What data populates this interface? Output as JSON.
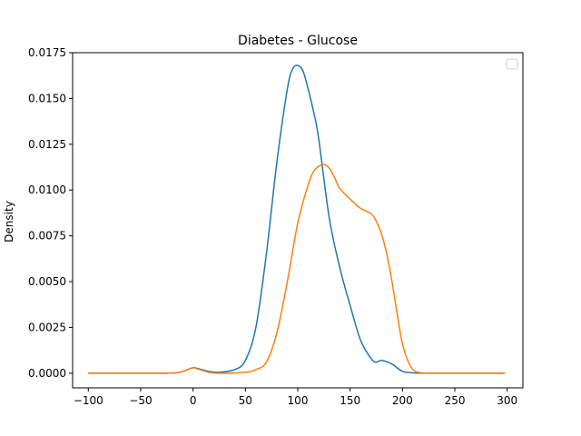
{
  "chart_data": {
    "type": "line",
    "title": "Diabetes - Glucose",
    "xlabel": "",
    "ylabel": "Density",
    "xlim": [
      -115,
      315
    ],
    "ylim": [
      -0.0008,
      0.0175
    ],
    "xticks": [
      -100,
      -50,
      0,
      50,
      100,
      150,
      200,
      250,
      300
    ],
    "xtick_labels": [
      "−100",
      "−50",
      "0",
      "50",
      "100",
      "150",
      "200",
      "250",
      "300"
    ],
    "yticks": [
      0.0,
      0.0025,
      0.005,
      0.0075,
      0.01,
      0.0125,
      0.015,
      0.0175
    ],
    "ytick_labels": [
      "0.0000",
      "0.0025",
      "0.0050",
      "0.0075",
      "0.0100",
      "0.0125",
      "0.0150",
      "0.0175"
    ],
    "grid": false,
    "legend": "top-right (empty)",
    "series": [
      {
        "color": "#1f77b4",
        "x": [
          -100,
          -60,
          -30,
          -15,
          -5,
          0,
          5,
          15,
          25,
          40,
          50,
          60,
          70,
          80,
          90,
          95,
          100,
          105,
          110,
          115,
          120,
          130,
          140,
          150,
          160,
          170,
          175,
          180,
          190,
          200,
          210,
          225,
          250,
          298
        ],
        "y": [
          0.0,
          0.0,
          0.0,
          3e-05,
          0.0002,
          0.0003,
          0.00025,
          0.0001,
          5e-05,
          0.0002,
          0.0007,
          0.0025,
          0.0065,
          0.0115,
          0.0155,
          0.0166,
          0.0168,
          0.0165,
          0.0155,
          0.0143,
          0.0128,
          0.0085,
          0.0058,
          0.0037,
          0.0018,
          0.0008,
          0.0006,
          0.0007,
          0.0005,
          0.0001,
          2e-05,
          0.0,
          0.0,
          0.0
        ]
      },
      {
        "color": "#ff7f0e",
        "x": [
          -100,
          -60,
          -30,
          -15,
          -5,
          0,
          5,
          15,
          25,
          50,
          60,
          70,
          80,
          90,
          100,
          110,
          115,
          120,
          125,
          130,
          135,
          140,
          150,
          160,
          170,
          175,
          180,
          185,
          190,
          195,
          200,
          205,
          210,
          215,
          225,
          250,
          298
        ],
        "y": [
          0.0,
          0.0,
          0.0,
          3e-05,
          0.0002,
          0.0003,
          0.00022,
          5e-05,
          0.0,
          5e-05,
          0.0002,
          0.0006,
          0.0022,
          0.005,
          0.0082,
          0.0103,
          0.011,
          0.0113,
          0.0114,
          0.0112,
          0.0107,
          0.0101,
          0.0095,
          0.009,
          0.0087,
          0.0083,
          0.0076,
          0.0065,
          0.005,
          0.0032,
          0.0016,
          0.0007,
          0.0002,
          5e-05,
          0.0,
          0.0,
          0.0
        ]
      }
    ]
  }
}
